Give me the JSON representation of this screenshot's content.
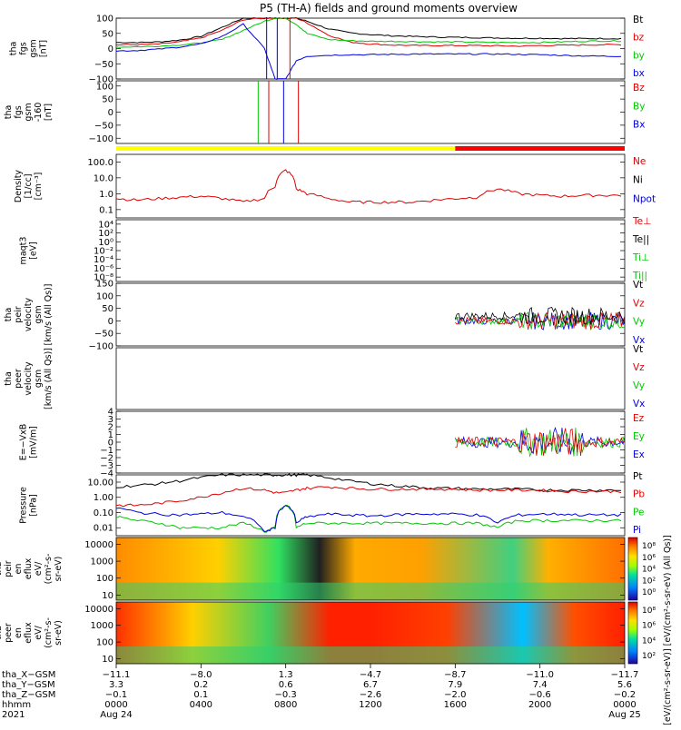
{
  "title": "P5 (TH-A) fields and ground moments overview",
  "panels": [
    {
      "id": "fgs-gsm",
      "ylabel": [
        "tha",
        "fgs",
        "gsm",
        "[nT]"
      ],
      "ticks": [
        {
          "v": 100,
          "t": "100"
        },
        {
          "v": 50,
          "t": "50"
        },
        {
          "v": 0,
          "t": "0"
        },
        {
          "v": -50,
          "t": "−50"
        },
        {
          "v": -100,
          "t": "−100"
        }
      ],
      "ylim": [
        -100,
        100
      ],
      "legend": [
        {
          "t": "Bt",
          "c": "#000000"
        },
        {
          "t": "bz",
          "c": "#e00000"
        },
        {
          "t": "by",
          "c": "#00c800"
        },
        {
          "t": "bx",
          "c": "#0000e0"
        }
      ]
    },
    {
      "id": "fgs-gse",
      "ylabel": [
        "tha",
        "fgs",
        "gsm",
        "-160",
        "[nT]"
      ],
      "ticks": [
        {
          "v": 100,
          "t": "100"
        },
        {
          "v": 50,
          "t": "50"
        },
        {
          "v": 0,
          "t": "0"
        },
        {
          "v": -50,
          "t": "−50"
        },
        {
          "v": -100,
          "t": "−100"
        }
      ],
      "ylim": [
        -120,
        120
      ],
      "legend": [
        {
          "t": "Bz",
          "c": "#e00000"
        },
        {
          "t": "By",
          "c": "#00c800"
        },
        {
          "t": "Bx",
          "c": "#0000e0"
        }
      ]
    },
    {
      "id": "density",
      "ylabel": [
        "Density",
        "[1/cc]",
        "[cm⁻³]"
      ],
      "ticks": [
        {
          "v": 100,
          "t": "100.0"
        },
        {
          "v": 10,
          "t": "10.0"
        },
        {
          "v": 1,
          "t": "1.0"
        },
        {
          "v": 0.1,
          "t": "0.1"
        }
      ],
      "ylim": [
        0.03,
        300
      ],
      "log": true,
      "legend": [
        {
          "t": "Ne",
          "c": "#e00000"
        },
        {
          "t": "Ni",
          "c": "#000000"
        },
        {
          "t": "Npot",
          "c": "#0000e0"
        }
      ]
    },
    {
      "id": "temperature",
      "ylabel": [
        "maqt3",
        "[eV]"
      ],
      "ticks": [
        {
          "v": 10000,
          "t": "10⁴"
        },
        {
          "v": 100,
          "t": "10²"
        },
        {
          "v": 1,
          "t": "10⁰"
        },
        {
          "v": 0.01,
          "t": "10⁻²"
        },
        {
          "v": 0.0001,
          "t": "10⁻⁴"
        },
        {
          "v": 1e-06,
          "t": "10⁻⁶"
        },
        {
          "v": 1e-08,
          "t": "10⁻⁸"
        }
      ],
      "ylim": [
        1e-09,
        100000.0
      ],
      "log": true,
      "legend": [
        {
          "t": "Te⊥",
          "c": "#e00000"
        },
        {
          "t": "Te||",
          "c": "#000000"
        },
        {
          "t": "Ti⊥",
          "c": "#00c800"
        },
        {
          "t": "Ti||",
          "c": "#00c800"
        }
      ]
    },
    {
      "id": "velocity1",
      "ylabel": [
        "tha",
        "peir",
        "velocity",
        "gsm",
        "[km/s (All Qs)]"
      ],
      "ticks": [
        {
          "v": 150,
          "t": "150"
        },
        {
          "v": 100,
          "t": "100"
        },
        {
          "v": 50,
          "t": "50"
        },
        {
          "v": 0,
          "t": "0"
        },
        {
          "v": -50,
          "t": "−50"
        },
        {
          "v": -100,
          "t": "−100"
        }
      ],
      "ylim": [
        -100,
        150
      ],
      "legend": [
        {
          "t": "Vt",
          "c": "#000000"
        },
        {
          "t": "Vz",
          "c": "#e00000"
        },
        {
          "t": "Vy",
          "c": "#00c800"
        },
        {
          "t": "Vx",
          "c": "#0000e0"
        }
      ]
    },
    {
      "id": "velocity2",
      "ylabel": [
        "tha",
        "peer",
        "velocity",
        "gsm",
        "[km/s (All Qs)]"
      ],
      "ticks": [],
      "ylim": [
        -100,
        150
      ],
      "legend": [
        {
          "t": "Vt",
          "c": "#000000"
        },
        {
          "t": "Vz",
          "c": "#e00000"
        },
        {
          "t": "Vy",
          "c": "#00c800"
        },
        {
          "t": "Vx",
          "c": "#0000e0"
        }
      ]
    },
    {
      "id": "efield",
      "ylabel": [
        "E=−VxB",
        "[mV/m]"
      ],
      "ticks": [
        {
          "v": 4,
          "t": "4"
        },
        {
          "v": 3,
          "t": "3"
        },
        {
          "v": 2,
          "t": "2"
        },
        {
          "v": 1,
          "t": "1"
        },
        {
          "v": 0,
          "t": "0"
        },
        {
          "v": -1,
          "t": "−1"
        },
        {
          "v": -2,
          "t": "−2"
        },
        {
          "v": -3,
          "t": "−3"
        },
        {
          "v": -4,
          "t": "−4"
        }
      ],
      "ylim": [
        -4,
        4
      ],
      "legend": [
        {
          "t": "Ez",
          "c": "#e00000"
        },
        {
          "t": "Ey",
          "c": "#00c800"
        },
        {
          "t": "Ex",
          "c": "#0000e0"
        }
      ]
    },
    {
      "id": "pressure",
      "ylabel": [
        "Pressure",
        "[nPa]"
      ],
      "ticks": [
        {
          "v": 10,
          "t": "10.00"
        },
        {
          "v": 1,
          "t": "1.00"
        },
        {
          "v": 0.1,
          "t": "0.10"
        },
        {
          "v": 0.01,
          "t": "0.01"
        }
      ],
      "ylim": [
        0.003,
        30
      ],
      "log": true,
      "legend": [
        {
          "t": "Pt",
          "c": "#000000"
        },
        {
          "t": "Pb",
          "c": "#e00000"
        },
        {
          "t": "Pe",
          "c": "#00c800"
        },
        {
          "t": "Pi",
          "c": "#0000e0"
        }
      ]
    },
    {
      "id": "ion-spec",
      "ylabel": [
        "tha",
        "peir",
        "en",
        "eflux",
        "eV/",
        "(cm²-s-",
        "sr-eV)"
      ],
      "ticks": [
        {
          "v": 10000,
          "t": "10000"
        },
        {
          "v": 1000,
          "t": "1000"
        },
        {
          "v": 100,
          "t": "100"
        },
        {
          "v": 10,
          "t": "10"
        }
      ],
      "ylim": [
        5,
        25000
      ],
      "log": true,
      "legend": []
    },
    {
      "id": "elec-spec",
      "ylabel": [
        "tha",
        "peer",
        "en",
        "eflux",
        "eV/",
        "(cm²-s-",
        "sr-eV)"
      ],
      "ticks": [
        {
          "v": 10000,
          "t": "10000"
        },
        {
          "v": 1000,
          "t": "1000"
        },
        {
          "v": 100,
          "t": "100"
        },
        {
          "v": 10,
          "t": "10"
        }
      ],
      "ylim": [
        5,
        25000
      ],
      "log": true,
      "legend": []
    }
  ],
  "colorbar": {
    "label": "[eV/(cm²-s-sr-eV)] [eV/(cm²-s-sr-eV) (All Qs)]",
    "ticks_ion": [
      "10⁸",
      "10⁶",
      "10⁴",
      "10²",
      "10⁰"
    ],
    "ticks_elec": [
      "10⁸",
      "10⁶",
      "10⁴",
      "10²"
    ]
  },
  "xaxis": {
    "rows": [
      {
        "label": "tha_X−GSM",
        "values": [
          "−11.1",
          "−8.0",
          "1.3",
          "−4.7",
          "−8.7",
          "−11.0",
          "−11.7"
        ]
      },
      {
        "label": "tha_Y−GSM",
        "values": [
          "3.3",
          "0.2",
          "0.6",
          "6.7",
          "7.9",
          "7.4",
          "5.6"
        ]
      },
      {
        "label": "tha_Z−GSM",
        "values": [
          "−0.1",
          "0.1",
          "−0.3",
          "−2.6",
          "−2.0",
          "−0.6",
          "−0.2"
        ]
      },
      {
        "label": "hhmm",
        "values": [
          "0000",
          "0400",
          "0800",
          "1200",
          "1600",
          "2000",
          "0000"
        ]
      }
    ],
    "year": "2021",
    "dates": [
      {
        "idx": 0,
        "t": "Aug 24"
      },
      {
        "idx": 6,
        "t": "Aug 25"
      }
    ]
  },
  "chart_data": {
    "type": "line",
    "title": "P5 (TH-A) fields and ground moments overview",
    "time_hours": [
      0,
      1,
      2,
      3,
      4,
      5,
      6,
      7,
      7.5,
      8,
      8.5,
      9,
      10,
      11,
      12,
      13,
      14,
      15,
      16,
      17,
      18,
      19,
      20,
      21,
      22,
      23,
      24
    ],
    "xticks": [
      "0000",
      "0400",
      "0800",
      "1200",
      "1600",
      "2000",
      "0000"
    ],
    "series": [
      {
        "name": "Bt",
        "panel": "fgs-gsm",
        "values": [
          20,
          20,
          22,
          28,
          40,
          70,
          100,
          100,
          100,
          100,
          100,
          90,
          65,
          52,
          46,
          42,
          40,
          38,
          37,
          36,
          35,
          34,
          34,
          33,
          33,
          33,
          33
        ]
      },
      {
        "name": "bz",
        "panel": "fgs-gsm",
        "values": [
          12,
          13,
          15,
          22,
          35,
          60,
          95,
          100,
          100,
          100,
          100,
          85,
          45,
          22,
          15,
          12,
          10,
          10,
          10,
          10,
          9,
          8,
          10,
          11,
          12,
          13,
          13
        ]
      },
      {
        "name": "by",
        "panel": "fgs-gsm",
        "values": [
          5,
          6,
          8,
          12,
          18,
          30,
          60,
          90,
          100,
          100,
          80,
          50,
          30,
          26,
          24,
          24,
          23,
          22,
          22,
          21,
          20,
          20,
          20,
          22,
          24,
          25,
          25
        ]
      },
      {
        "name": "bx",
        "panel": "fgs-gsm",
        "values": [
          -8,
          -6,
          -2,
          5,
          15,
          40,
          80,
          0,
          -100,
          -100,
          -40,
          -25,
          -22,
          -20,
          -20,
          -19,
          -18,
          -18,
          -18,
          -18,
          -18,
          -19,
          -20,
          -22,
          -24,
          -25,
          -25
        ]
      },
      {
        "name": "Ne",
        "panel": "density",
        "values": [
          0.5,
          0.4,
          0.5,
          0.6,
          0.7,
          0.5,
          0.3,
          0.5,
          3,
          30,
          2,
          1,
          0.5,
          0.3,
          0.3,
          0.3,
          0.3,
          0.4,
          0.5,
          0.6,
          2,
          1,
          0.8,
          0.7,
          0.8,
          0.8,
          0.8
        ]
      },
      {
        "name": "Pt",
        "panel": "pressure",
        "values": [
          5,
          6,
          8,
          12,
          20,
          30,
          30,
          30,
          30,
          30,
          30,
          30,
          20,
          12,
          8,
          6,
          5,
          4,
          4,
          3.5,
          3.5,
          3.5,
          3,
          3,
          3,
          3,
          3
        ]
      },
      {
        "name": "Pb",
        "panel": "pressure",
        "values": [
          0.3,
          0.3,
          0.4,
          0.6,
          1,
          2,
          4,
          3,
          2,
          2,
          3,
          4,
          5,
          4,
          3.5,
          3.5,
          3.5,
          3.5,
          3.5,
          3,
          3,
          3,
          3,
          2.5,
          2.5,
          2.5,
          2.5
        ]
      },
      {
        "name": "Pe",
        "panel": "pressure",
        "values": [
          0.05,
          0.03,
          0.02,
          0.01,
          0.01,
          0.01,
          0.02,
          0.005,
          0.01,
          0.3,
          0.01,
          0.02,
          0.02,
          0.02,
          0.02,
          0.02,
          0.02,
          0.02,
          0.02,
          0.02,
          0.01,
          0.03,
          0.03,
          0.03,
          0.03,
          0.03,
          0.03
        ]
      },
      {
        "name": "Pi",
        "panel": "pressure",
        "values": [
          0.2,
          0.1,
          0.08,
          0.07,
          0.08,
          0.1,
          0.05,
          0.005,
          0.01,
          0.3,
          0.02,
          0.05,
          0.08,
          0.07,
          0.06,
          0.07,
          0.08,
          0.08,
          0.08,
          0.07,
          0.02,
          0.07,
          0.08,
          0.08,
          0.07,
          0.07,
          0.07
        ]
      }
    ],
    "status_bar": [
      {
        "from": 0,
        "to": 16,
        "color": "#ffff00"
      },
      {
        "from": 16,
        "to": 24,
        "color": "#ff0000"
      }
    ]
  }
}
